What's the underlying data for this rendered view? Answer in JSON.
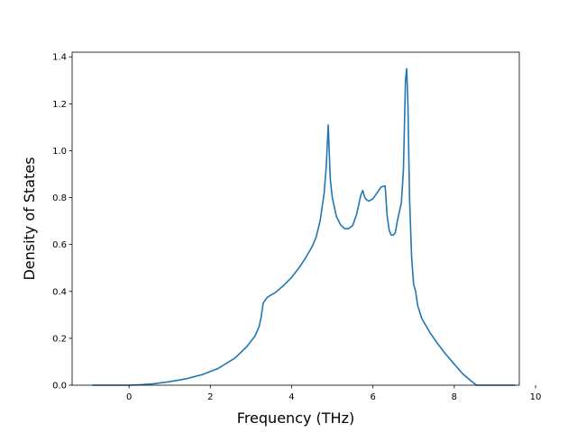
{
  "chart_data": {
    "type": "line",
    "title": "",
    "xlabel": "Frequency (THz)",
    "ylabel": "Density of States",
    "xlim": [
      -1.4,
      9.6
    ],
    "ylim": [
      0.0,
      1.42
    ],
    "xticks": [
      0,
      2,
      4,
      6,
      8,
      10
    ],
    "yticks": [
      0.0,
      0.2,
      0.4,
      0.6,
      0.8,
      1.0,
      1.2,
      1.4
    ],
    "xtick_labels": [
      "0",
      "2",
      "4",
      "6",
      "8",
      "10"
    ],
    "ytick_labels": [
      "0.0",
      "0.2",
      "0.4",
      "0.6",
      "0.8",
      "1.0",
      "1.2",
      "1.4"
    ],
    "grid": false,
    "series": [
      {
        "color": "#1f77b4",
        "x": [
          -0.9,
          -0.5,
          0.0,
          0.3,
          0.6,
          1.0,
          1.4,
          1.8,
          2.2,
          2.6,
          2.9,
          3.1,
          3.2,
          3.25,
          3.3,
          3.4,
          3.6,
          3.8,
          4.0,
          4.2,
          4.35,
          4.5,
          4.6,
          4.7,
          4.8,
          4.85,
          4.9,
          4.95,
          5.0,
          5.1,
          5.2,
          5.3,
          5.4,
          5.5,
          5.6,
          5.7,
          5.75,
          5.8,
          5.85,
          5.9,
          6.0,
          6.1,
          6.2,
          6.3,
          6.35,
          6.4,
          6.45,
          6.5,
          6.55,
          6.6,
          6.7,
          6.75,
          6.8,
          6.83,
          6.86,
          6.9,
          6.95,
          7.0,
          7.05,
          7.1,
          7.2,
          7.4,
          7.6,
          7.8,
          8.0,
          8.2,
          8.4,
          8.55,
          8.65,
          8.7,
          9.0,
          9.5
        ],
        "y": [
          0.0,
          0.0,
          0.0,
          0.002,
          0.006,
          0.015,
          0.027,
          0.045,
          0.072,
          0.115,
          0.165,
          0.21,
          0.25,
          0.29,
          0.35,
          0.375,
          0.395,
          0.425,
          0.46,
          0.505,
          0.545,
          0.59,
          0.63,
          0.7,
          0.82,
          0.93,
          1.11,
          0.88,
          0.8,
          0.72,
          0.685,
          0.668,
          0.668,
          0.68,
          0.73,
          0.81,
          0.83,
          0.8,
          0.79,
          0.785,
          0.795,
          0.82,
          0.845,
          0.85,
          0.72,
          0.66,
          0.64,
          0.64,
          0.65,
          0.7,
          0.78,
          0.92,
          1.3,
          1.35,
          1.2,
          0.8,
          0.55,
          0.43,
          0.4,
          0.34,
          0.285,
          0.225,
          0.175,
          0.13,
          0.09,
          0.05,
          0.02,
          0.0,
          0.0,
          0.0,
          0.0,
          0.0
        ]
      }
    ]
  }
}
